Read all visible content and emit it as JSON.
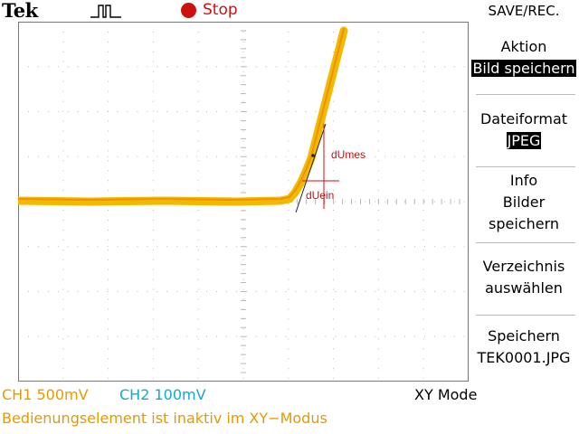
{
  "header": {
    "brand": "Tek",
    "trigger_icon": "pulse-icon",
    "run_state_icon": "stop-dot-icon",
    "run_state": "Stop"
  },
  "menu": {
    "title": "SAVE/REC.",
    "items": [
      {
        "line1": "Aktion",
        "value": "Bild speichern"
      },
      {
        "line1": "Dateiformat",
        "value": "JPEG"
      },
      {
        "line1": "Info",
        "line2": "Bilder",
        "line3": "speichern"
      },
      {
        "line1": "Verzeichnis",
        "line2": "auswählen"
      },
      {
        "line1": "Speichern",
        "line2": "TEK0001.JPG"
      }
    ]
  },
  "screen": {
    "annotation_top": "dUmes",
    "annotation_bottom": "dUein"
  },
  "status": {
    "ch1": "CH1  500mV",
    "ch2": "CH2  100mV",
    "mode": "XY Mode",
    "message": "Bedienungselement ist inaktiv im XY−Modus"
  },
  "colors": {
    "trace": "#f5b800",
    "trace_edge": "#e88a00",
    "ch1": "#e69a00",
    "ch2": "#11aacc",
    "stop": "#cc1111",
    "annotation": "#cc1111",
    "grid": "#b8b8b8"
  }
}
